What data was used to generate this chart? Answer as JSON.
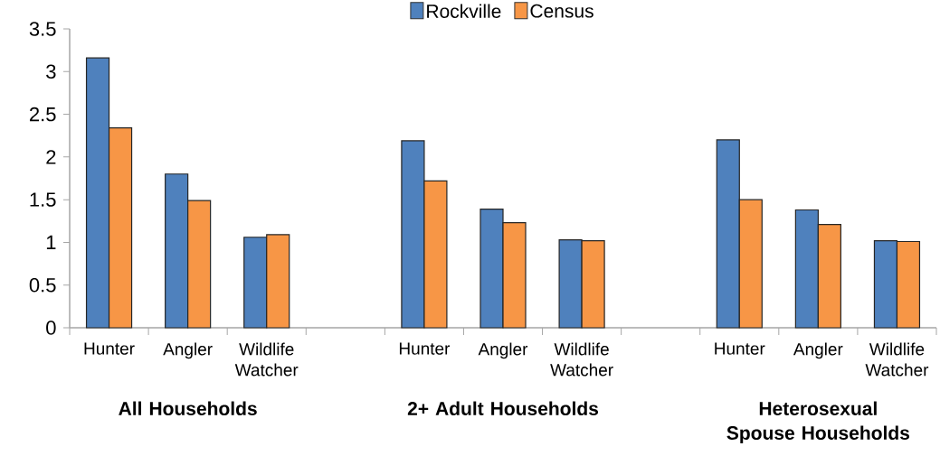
{
  "chart_data": {
    "type": "bar",
    "categories": [
      "Hunter",
      "Angler",
      "Wildlife Watcher",
      null,
      "Hunter",
      "Angler",
      "Wildlife Watcher",
      null,
      "Hunter",
      "Angler",
      "Wildlife Watcher"
    ],
    "series": [
      {
        "name": "Rockville",
        "color": "#4f81bd",
        "values": [
          3.16,
          1.8,
          1.06,
          null,
          2.19,
          1.39,
          1.03,
          null,
          2.2,
          1.38,
          1.02
        ]
      },
      {
        "name": "Census",
        "color": "#f79646",
        "values": [
          2.34,
          1.49,
          1.09,
          null,
          1.72,
          1.23,
          1.02,
          null,
          1.5,
          1.21,
          1.01
        ]
      }
    ],
    "annotations": [
      "All Households",
      "2+ Adult Households",
      "Heterosexual Spouse Households"
    ],
    "ylim": [
      0,
      3.5
    ],
    "yticks": [
      0,
      0.5,
      1,
      1.5,
      2,
      2.5,
      3,
      3.5
    ],
    "grid": false,
    "legend": "top"
  }
}
